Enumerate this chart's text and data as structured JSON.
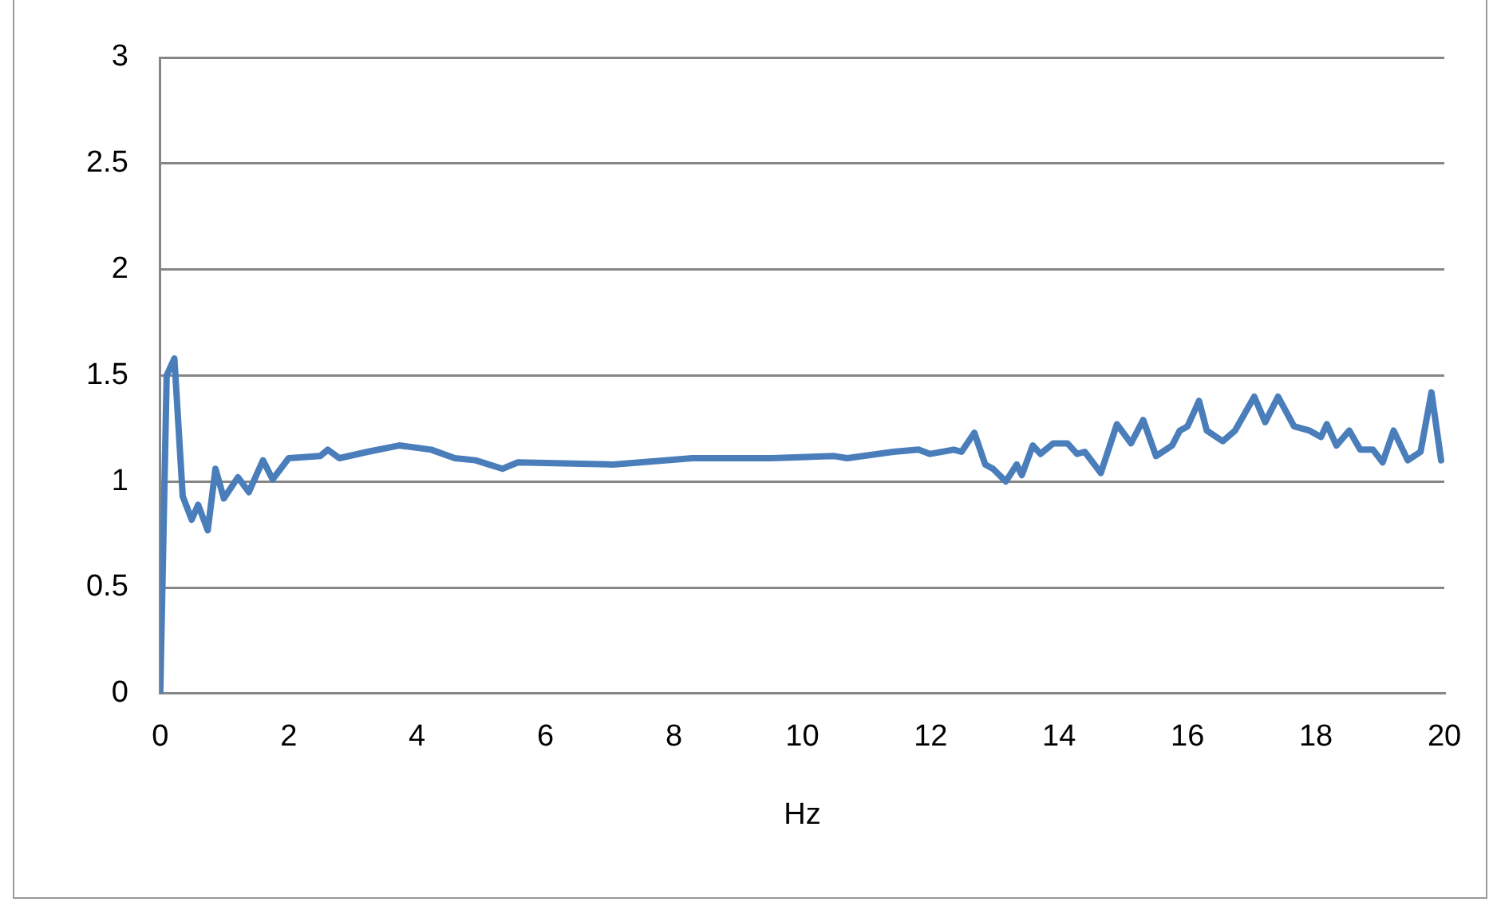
{
  "chart_data": {
    "type": "line",
    "xlabel": "Hz",
    "xlim": [
      0,
      20
    ],
    "xticks": [
      0,
      2,
      4,
      6,
      8,
      10,
      12,
      14,
      16,
      18,
      20
    ],
    "ylim": [
      0,
      3
    ],
    "yticks": [
      0,
      0.5,
      1,
      1.5,
      2,
      2.5,
      3
    ],
    "grid": "y",
    "legend": false,
    "marker": "none",
    "line_style": "solid",
    "series": [
      {
        "color": "#4a7ebb",
        "x": [
          0,
          0.1,
          0.22,
          0.35,
          0.49,
          0.59,
          0.74,
          0.86,
          0.99,
          1.21,
          1.38,
          1.6,
          1.75,
          2.0,
          2.49,
          2.61,
          2.79,
          3.23,
          3.72,
          4.22,
          4.59,
          4.91,
          5.33,
          5.57,
          7.05,
          8.29,
          9.52,
          10.5,
          10.7,
          11.42,
          11.81,
          11.99,
          12.36,
          12.48,
          12.68,
          12.85,
          12.97,
          13.17,
          13.34,
          13.42,
          13.59,
          13.71,
          13.91,
          14.13,
          14.28,
          14.4,
          14.65,
          14.9,
          15.12,
          15.31,
          15.51,
          15.76,
          15.88,
          16.0,
          16.18,
          16.3,
          16.55,
          16.74,
          17.04,
          17.21,
          17.41,
          17.66,
          17.9,
          18.08,
          18.17,
          18.32,
          18.52,
          18.69,
          18.89,
          19.04,
          19.21,
          19.43,
          19.63,
          19.8,
          19.95
        ],
        "values": [
          0,
          1.5,
          1.58,
          0.93,
          0.82,
          0.89,
          0.77,
          1.06,
          0.92,
          1.02,
          0.95,
          1.1,
          1.01,
          1.11,
          1.12,
          1.15,
          1.11,
          1.14,
          1.17,
          1.15,
          1.11,
          1.1,
          1.06,
          1.09,
          1.08,
          1.11,
          1.11,
          1.12,
          1.11,
          1.14,
          1.15,
          1.13,
          1.15,
          1.14,
          1.23,
          1.08,
          1.06,
          1.0,
          1.08,
          1.03,
          1.17,
          1.13,
          1.18,
          1.18,
          1.13,
          1.14,
          1.04,
          1.27,
          1.18,
          1.29,
          1.12,
          1.17,
          1.24,
          1.26,
          1.38,
          1.24,
          1.19,
          1.24,
          1.4,
          1.28,
          1.4,
          1.26,
          1.24,
          1.21,
          1.27,
          1.17,
          1.24,
          1.15,
          1.15,
          1.09,
          1.24,
          1.1,
          1.14,
          1.42,
          1.1
        ]
      }
    ]
  }
}
